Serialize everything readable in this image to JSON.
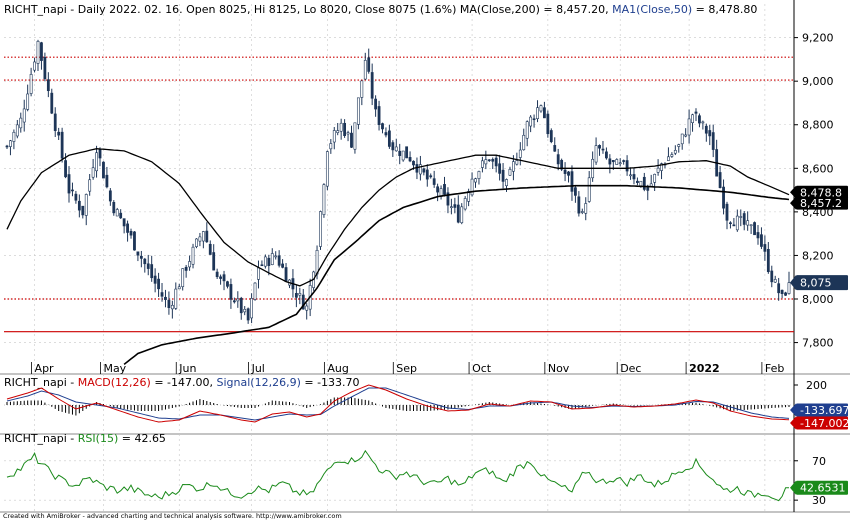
{
  "colors": {
    "background": "#ffffff",
    "grid": "#c8c8c8",
    "candle_up": "#ffffff",
    "candle_down": "#1d3557",
    "candle_outline": "#1d3557",
    "ma200": "#000000",
    "ma50": "#000000",
    "hline_dotted": "#cc0000",
    "hline_solid": "#cc0000",
    "macd": "#cc0000",
    "signal": "#1f3f8f",
    "macd_hist": "#000000",
    "rsi": "#1a8a1a",
    "label_close_bg": "#1d3557",
    "label_ma_bg": "#000000",
    "label_signal_bg": "#1f3f8f",
    "label_macd_bg": "#cc0000",
    "label_rsi_bg": "#1a8a1a"
  },
  "price_panel": {
    "title_parts": [
      {
        "text": "RICHT_napi - Daily 2022. 02. 16. Open 8025, Hi 8125, Lo 8020, Close 8075 (1.6%) ",
        "color": "#000000"
      },
      {
        "text": "MA(Close,200) = 8,457.20, ",
        "color": "#000000"
      },
      {
        "text": "MA1(Close,50)",
        "color": "#1f3f8f"
      },
      {
        "text": " = 8,478.80",
        "color": "#000000"
      }
    ],
    "labels": {
      "ma50": "8,478.8",
      "ma200": "8,457.2",
      "close": "8,075"
    }
  },
  "macd_panel": {
    "title_parts": [
      {
        "text": "RICHT_napi - ",
        "color": "#000000"
      },
      {
        "text": "MACD(12,26)",
        "color": "#cc0000"
      },
      {
        "text": " = -147.00, ",
        "color": "#000000"
      },
      {
        "text": "Signal(12,26,9)",
        "color": "#1f3f8f"
      },
      {
        "text": " = -133.70",
        "color": "#000000"
      }
    ],
    "labels": {
      "signal": "-133.697",
      "macd": "-147.002"
    },
    "ytick": "200"
  },
  "rsi_panel": {
    "title_parts": [
      {
        "text": "RICHT_napi - ",
        "color": "#000000"
      },
      {
        "text": "RSI(15)",
        "color": "#1a8a1a"
      },
      {
        "text": " = 42.65",
        "color": "#000000"
      }
    ],
    "labels": {
      "rsi": "42.6531"
    },
    "yticks": [
      "70",
      "30"
    ]
  },
  "footer": "Created with AmiBroker - advanced charting and technical analysis software. http://www.amibroker.com",
  "chart_data": {
    "type": "candlestick",
    "ticker": "RICHT_napi",
    "interval": "Daily",
    "last_bar": {
      "date": "2022. 02. 16.",
      "open": 8025,
      "high": 8125,
      "low": 8020,
      "close": 8075,
      "change_pct": 1.6
    },
    "x_tick_labels": [
      "Apr",
      "May",
      "Jun",
      "Jul",
      "Aug",
      "Sep",
      "Oct",
      "Nov",
      "Dec",
      "2022",
      "Feb"
    ],
    "x_tick_index": [
      8,
      28,
      50,
      71,
      93,
      113,
      135,
      157,
      178,
      198,
      220
    ],
    "y_ticks": [
      7800,
      8000,
      8200,
      8400,
      8600,
      8800,
      9000,
      9200
    ],
    "ylim": [
      7720,
      9290
    ],
    "hlines": [
      {
        "value": 9110,
        "style": "dotted"
      },
      {
        "value": 9005,
        "style": "dotted"
      },
      {
        "value": 8000,
        "style": "dotted"
      },
      {
        "value": 7850,
        "style": "solid"
      }
    ],
    "close_path": [
      [
        0,
        8700
      ],
      [
        4,
        8820
      ],
      [
        9,
        9180
      ],
      [
        12,
        8950
      ],
      [
        18,
        8500
      ],
      [
        22,
        8400
      ],
      [
        26,
        8700
      ],
      [
        30,
        8450
      ],
      [
        36,
        8280
      ],
      [
        42,
        8100
      ],
      [
        47,
        7960
      ],
      [
        52,
        8150
      ],
      [
        57,
        8320
      ],
      [
        61,
        8100
      ],
      [
        66,
        8000
      ],
      [
        70,
        7900
      ],
      [
        73,
        8150
      ],
      [
        78,
        8200
      ],
      [
        83,
        8050
      ],
      [
        87,
        7960
      ],
      [
        90,
        8250
      ],
      [
        93,
        8700
      ],
      [
        97,
        8800
      ],
      [
        100,
        8720
      ],
      [
        104,
        9100
      ],
      [
        107,
        8850
      ],
      [
        112,
        8700
      ],
      [
        117,
        8650
      ],
      [
        122,
        8550
      ],
      [
        126,
        8480
      ],
      [
        131,
        8380
      ],
      [
        135,
        8560
      ],
      [
        140,
        8650
      ],
      [
        145,
        8520
      ],
      [
        151,
        8800
      ],
      [
        155,
        8900
      ],
      [
        159,
        8650
      ],
      [
        163,
        8550
      ],
      [
        167,
        8380
      ],
      [
        171,
        8700
      ],
      [
        175,
        8620
      ],
      [
        180,
        8600
      ],
      [
        186,
        8500
      ],
      [
        190,
        8620
      ],
      [
        195,
        8700
      ],
      [
        199,
        8850
      ],
      [
        204,
        8750
      ],
      [
        206,
        8580
      ],
      [
        209,
        8380
      ],
      [
        213,
        8350
      ],
      [
        218,
        8300
      ],
      [
        222,
        8100
      ],
      [
        225,
        8000
      ],
      [
        227,
        8075
      ]
    ],
    "ma200_path": [
      [
        34,
        7700
      ],
      [
        38,
        7750
      ],
      [
        45,
        7790
      ],
      [
        55,
        7820
      ],
      [
        66,
        7845
      ],
      [
        76,
        7870
      ],
      [
        84,
        7930
      ],
      [
        90,
        8050
      ],
      [
        95,
        8180
      ],
      [
        101,
        8260
      ],
      [
        108,
        8360
      ],
      [
        115,
        8420
      ],
      [
        125,
        8470
      ],
      [
        136,
        8495
      ],
      [
        150,
        8510
      ],
      [
        165,
        8520
      ],
      [
        180,
        8520
      ],
      [
        195,
        8510
      ],
      [
        210,
        8490
      ],
      [
        222,
        8465
      ],
      [
        227,
        8457
      ]
    ],
    "ma50_path": [
      [
        0,
        8320
      ],
      [
        4,
        8450
      ],
      [
        10,
        8580
      ],
      [
        18,
        8660
      ],
      [
        26,
        8690
      ],
      [
        34,
        8680
      ],
      [
        42,
        8630
      ],
      [
        50,
        8530
      ],
      [
        57,
        8380
      ],
      [
        63,
        8260
      ],
      [
        70,
        8170
      ],
      [
        76,
        8120
      ],
      [
        81,
        8080
      ],
      [
        85,
        8060
      ],
      [
        89,
        8090
      ],
      [
        93,
        8200
      ],
      [
        98,
        8320
      ],
      [
        103,
        8420
      ],
      [
        108,
        8500
      ],
      [
        113,
        8560
      ],
      [
        118,
        8600
      ],
      [
        124,
        8620
      ],
      [
        130,
        8640
      ],
      [
        136,
        8660
      ],
      [
        142,
        8660
      ],
      [
        148,
        8640
      ],
      [
        154,
        8620
      ],
      [
        160,
        8600
      ],
      [
        166,
        8600
      ],
      [
        172,
        8600
      ],
      [
        180,
        8600
      ],
      [
        188,
        8610
      ],
      [
        195,
        8630
      ],
      [
        203,
        8635
      ],
      [
        210,
        8610
      ],
      [
        215,
        8560
      ],
      [
        221,
        8520
      ],
      [
        227,
        8479
      ]
    ],
    "macd_ylim": [
      -250,
      250
    ],
    "macd_path": [
      [
        0,
        60
      ],
      [
        6,
        120
      ],
      [
        10,
        170
      ],
      [
        15,
        60
      ],
      [
        20,
        -40
      ],
      [
        26,
        20
      ],
      [
        32,
        -50
      ],
      [
        38,
        -120
      ],
      [
        44,
        -170
      ],
      [
        50,
        -150
      ],
      [
        56,
        -60
      ],
      [
        62,
        -100
      ],
      [
        68,
        -150
      ],
      [
        72,
        -170
      ],
      [
        77,
        -90
      ],
      [
        82,
        -70
      ],
      [
        87,
        -120
      ],
      [
        91,
        -90
      ],
      [
        95,
        40
      ],
      [
        100,
        130
      ],
      [
        105,
        200
      ],
      [
        110,
        150
      ],
      [
        116,
        60
      ],
      [
        122,
        -10
      ],
      [
        128,
        -60
      ],
      [
        134,
        -50
      ],
      [
        140,
        10
      ],
      [
        146,
        -10
      ],
      [
        152,
        40
      ],
      [
        158,
        30
      ],
      [
        164,
        -40
      ],
      [
        170,
        -30
      ],
      [
        176,
        0
      ],
      [
        182,
        -20
      ],
      [
        188,
        -10
      ],
      [
        194,
        10
      ],
      [
        200,
        50
      ],
      [
        205,
        20
      ],
      [
        210,
        -60
      ],
      [
        216,
        -110
      ],
      [
        222,
        -140
      ],
      [
        227,
        -147
      ]
    ],
    "signal_path": [
      [
        0,
        40
      ],
      [
        6,
        90
      ],
      [
        10,
        140
      ],
      [
        15,
        100
      ],
      [
        20,
        30
      ],
      [
        26,
        0
      ],
      [
        32,
        -30
      ],
      [
        38,
        -80
      ],
      [
        44,
        -130
      ],
      [
        50,
        -140
      ],
      [
        56,
        -100
      ],
      [
        62,
        -100
      ],
      [
        68,
        -130
      ],
      [
        72,
        -150
      ],
      [
        77,
        -120
      ],
      [
        82,
        -90
      ],
      [
        87,
        -100
      ],
      [
        91,
        -95
      ],
      [
        95,
        -10
      ],
      [
        100,
        80
      ],
      [
        105,
        170
      ],
      [
        110,
        170
      ],
      [
        116,
        100
      ],
      [
        122,
        30
      ],
      [
        128,
        -30
      ],
      [
        134,
        -45
      ],
      [
        140,
        -10
      ],
      [
        146,
        -10
      ],
      [
        152,
        20
      ],
      [
        158,
        30
      ],
      [
        164,
        -10
      ],
      [
        170,
        -25
      ],
      [
        176,
        -10
      ],
      [
        182,
        -15
      ],
      [
        188,
        -10
      ],
      [
        194,
        0
      ],
      [
        200,
        35
      ],
      [
        205,
        30
      ],
      [
        210,
        -20
      ],
      [
        216,
        -80
      ],
      [
        222,
        -120
      ],
      [
        227,
        -134
      ]
    ],
    "rsi_ylim": [
      20,
      85
    ],
    "rsi_path": [
      [
        0,
        55
      ],
      [
        4,
        62
      ],
      [
        8,
        74
      ],
      [
        12,
        60
      ],
      [
        16,
        50
      ],
      [
        20,
        45
      ],
      [
        24,
        52
      ],
      [
        28,
        44
      ],
      [
        32,
        40
      ],
      [
        36,
        42
      ],
      [
        40,
        36
      ],
      [
        44,
        33
      ],
      [
        48,
        38
      ],
      [
        52,
        45
      ],
      [
        56,
        42
      ],
      [
        60,
        48
      ],
      [
        64,
        38
      ],
      [
        68,
        35
      ],
      [
        72,
        42
      ],
      [
        76,
        40
      ],
      [
        80,
        47
      ],
      [
        84,
        38
      ],
      [
        88,
        35
      ],
      [
        92,
        55
      ],
      [
        96,
        72
      ],
      [
        100,
        70
      ],
      [
        104,
        78
      ],
      [
        108,
        62
      ],
      [
        112,
        54
      ],
      [
        116,
        58
      ],
      [
        120,
        50
      ],
      [
        124,
        46
      ],
      [
        128,
        52
      ],
      [
        132,
        44
      ],
      [
        136,
        58
      ],
      [
        140,
        60
      ],
      [
        144,
        48
      ],
      [
        148,
        62
      ],
      [
        152,
        70
      ],
      [
        156,
        52
      ],
      [
        160,
        45
      ],
      [
        164,
        38
      ],
      [
        168,
        60
      ],
      [
        172,
        48
      ],
      [
        176,
        52
      ],
      [
        180,
        48
      ],
      [
        184,
        55
      ],
      [
        188,
        45
      ],
      [
        192,
        52
      ],
      [
        196,
        62
      ],
      [
        200,
        68
      ],
      [
        204,
        55
      ],
      [
        208,
        40
      ],
      [
        212,
        42
      ],
      [
        216,
        35
      ],
      [
        220,
        38
      ],
      [
        224,
        32
      ],
      [
        227,
        42.65
      ]
    ]
  }
}
